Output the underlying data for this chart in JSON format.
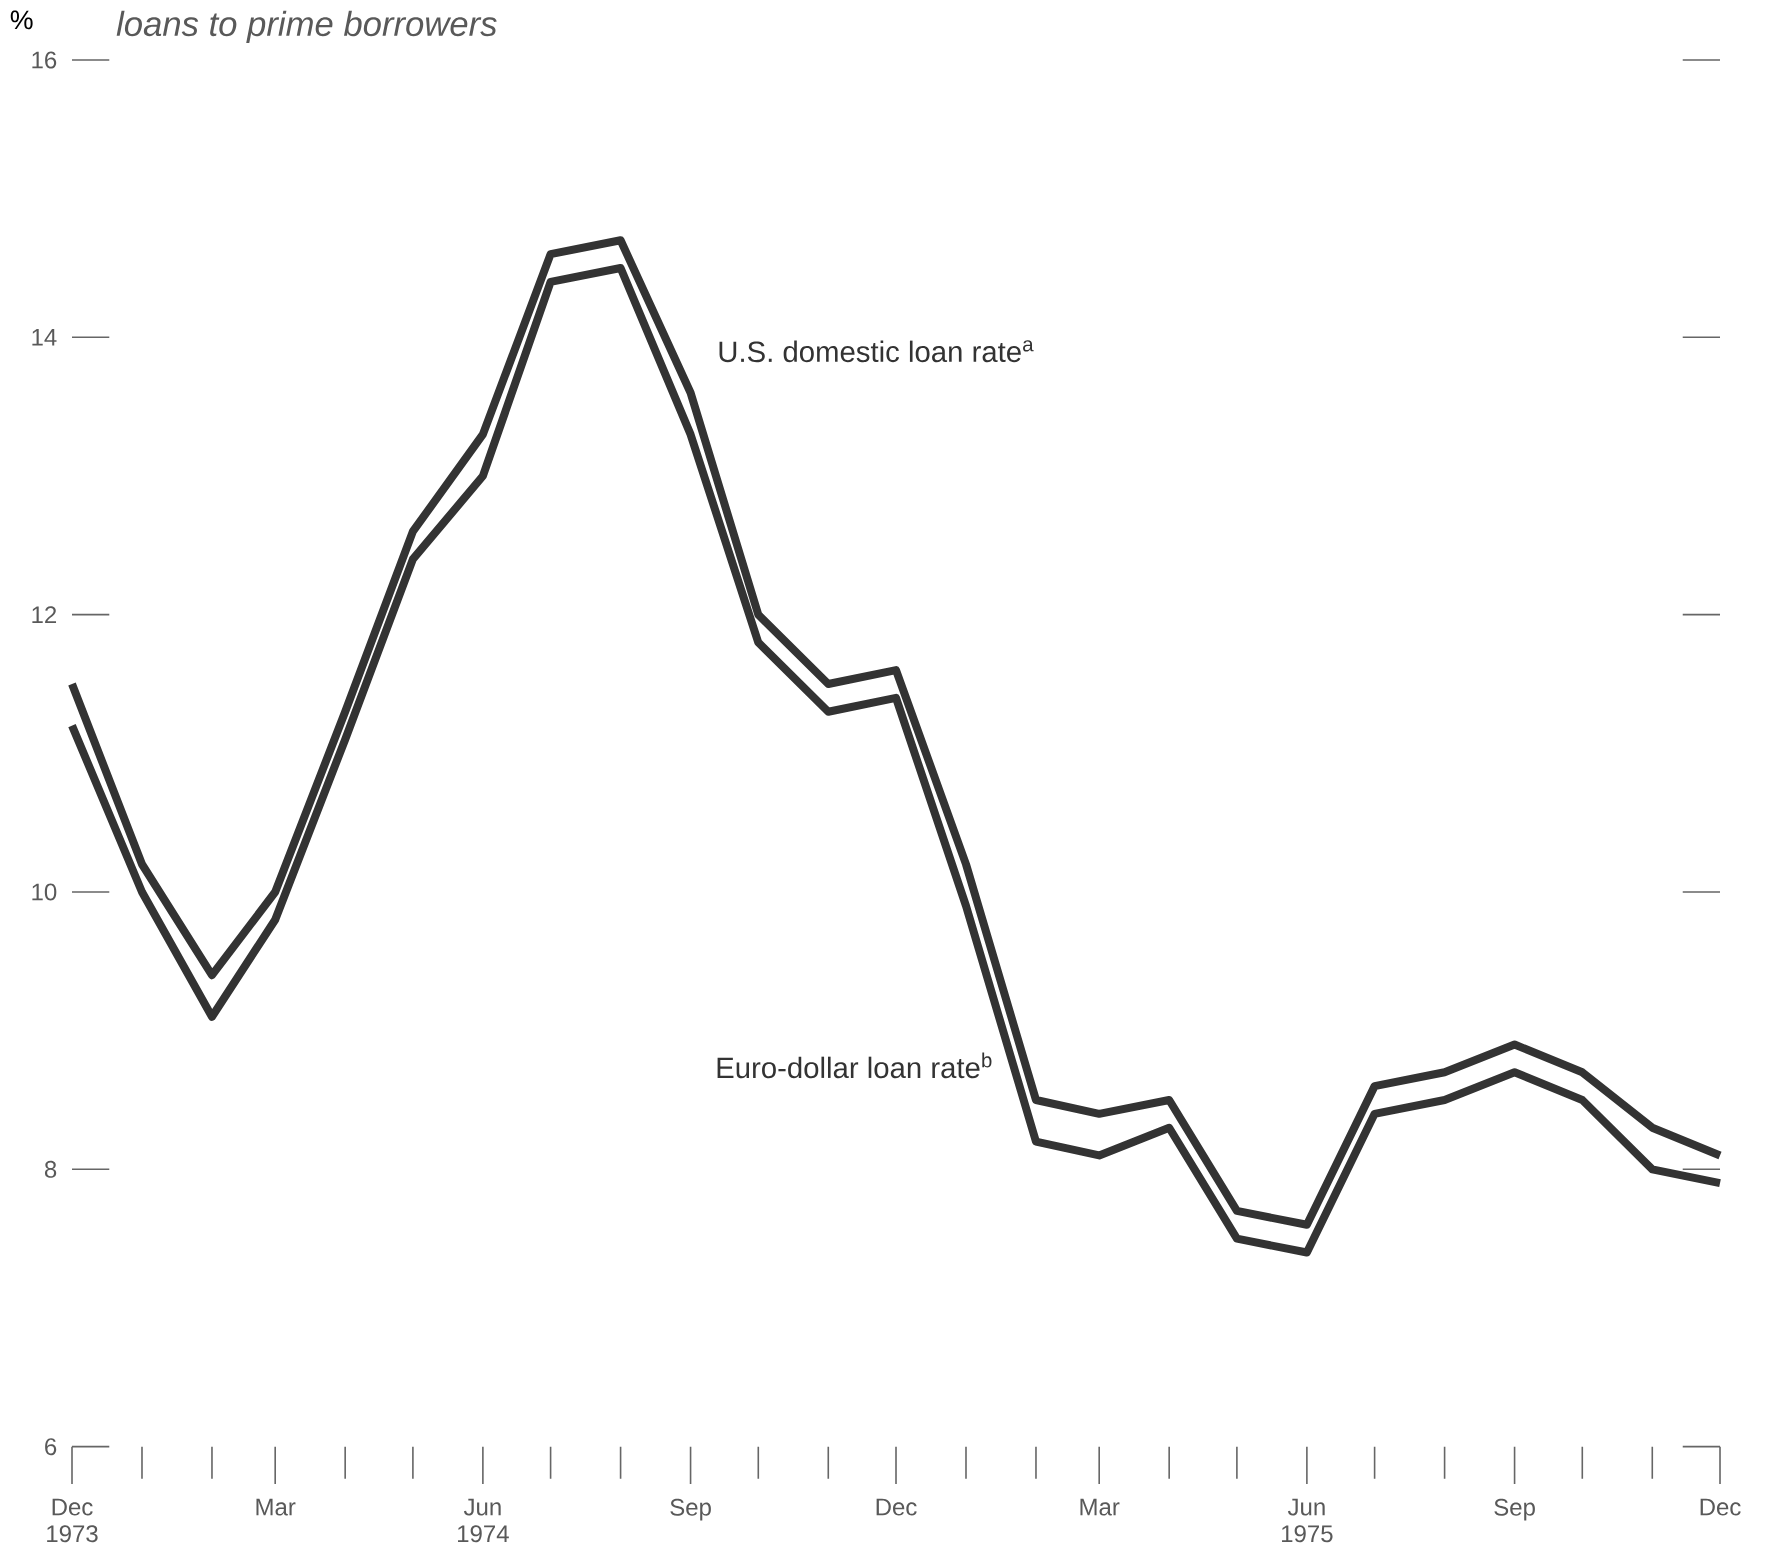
{
  "chart_data": {
    "type": "line",
    "title": "loans to prime borrowers",
    "ylabel": "%",
    "x": [
      "1973-12",
      "1974-01",
      "1974-02",
      "1974-03",
      "1974-04",
      "1974-05",
      "1974-06",
      "1974-07",
      "1974-08",
      "1974-09",
      "1974-10",
      "1974-11",
      "1974-12",
      "1975-01",
      "1975-02",
      "1975-03",
      "1975-04",
      "1975-05",
      "1975-06",
      "1975-07",
      "1975-08",
      "1975-09",
      "1975-10",
      "1975-11",
      "1975-12"
    ],
    "series": [
      {
        "name": "U.S. domestic loan rate$^{a}$",
        "color": "#333333",
        "values": [
          11.5,
          10.2,
          9.4,
          10.0,
          11.3,
          12.6,
          13.3,
          14.6,
          14.7,
          13.6,
          12.0,
          11.5,
          11.6,
          10.2,
          8.5,
          8.4,
          8.5,
          7.7,
          7.6,
          8.6,
          8.7,
          8.9,
          8.7,
          8.3,
          8.1
        ]
      },
      {
        "name": "Euro-dollar loan rate$^{b}$",
        "color": "#333333",
        "values": [
          11.2,
          10.0,
          9.1,
          9.8,
          11.1,
          12.4,
          13.0,
          14.4,
          14.5,
          13.3,
          11.8,
          11.3,
          11.4,
          9.9,
          8.2,
          8.1,
          8.3,
          7.5,
          7.4,
          8.4,
          8.5,
          8.7,
          8.5,
          8.0,
          7.9
        ]
      }
    ],
    "xlim": [
      "1973-12",
      "1975-12"
    ],
    "xticks": [
      {
        "value": "1973-12",
        "label": "Dec 1973"
      },
      {
        "value": "1974-03",
        "label": "Mar"
      },
      {
        "value": "1974-06",
        "label": "Jun 1974"
      },
      {
        "value": "1974-09",
        "label": "Sep"
      },
      {
        "value": "1974-12",
        "label": "Dec"
      },
      {
        "value": "1975-03",
        "label": "Mar"
      },
      {
        "value": "1975-06",
        "label": "Jun 1975"
      },
      {
        "value": "1975-09",
        "label": "Sep"
      },
      {
        "value": "1975-12",
        "label": "Dec"
      }
    ],
    "ylim": [
      6,
      16
    ],
    "yticks": [
      6,
      8,
      10,
      12,
      14,
      16
    ],
    "grid": false,
    "legend": false,
    "marker": "none",
    "line_style": "solid"
  }
}
